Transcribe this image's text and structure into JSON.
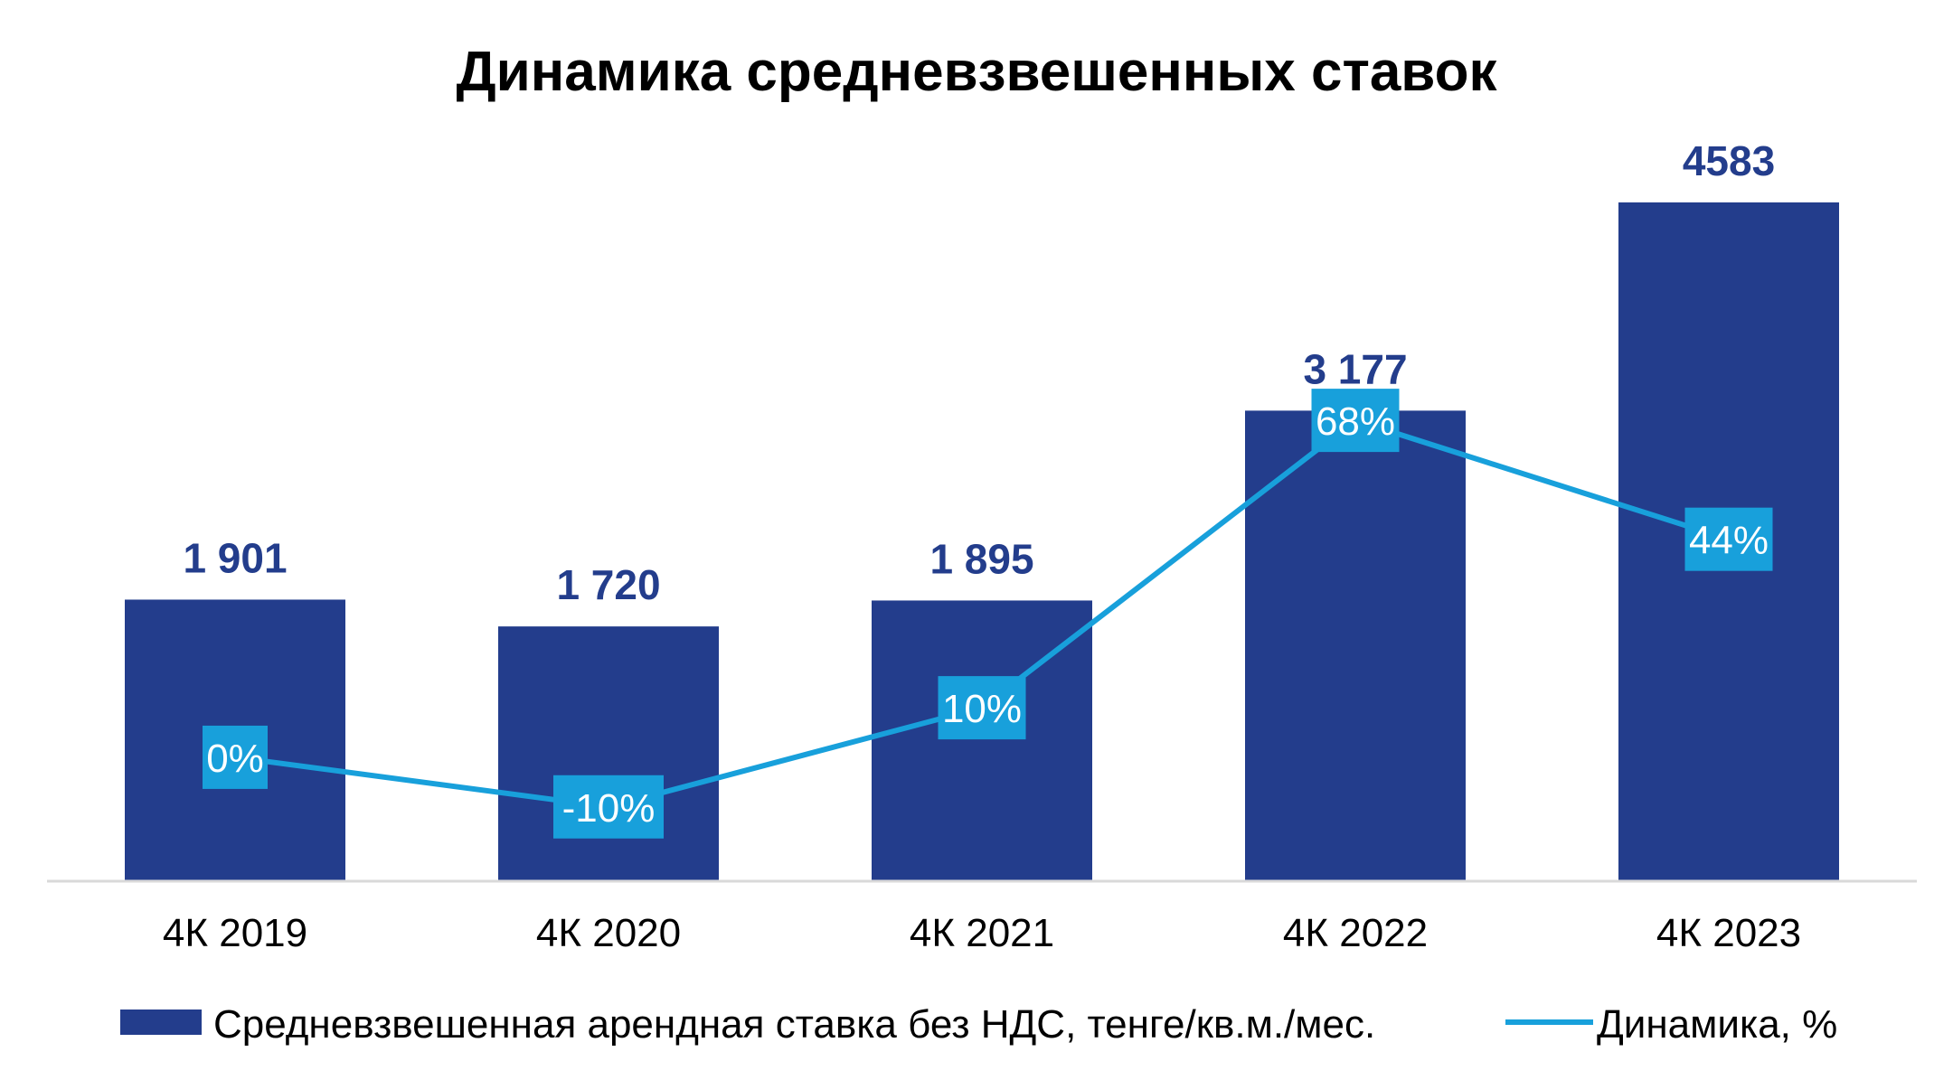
{
  "chart_data": {
    "type": "bar",
    "title": "Динамика средневзвешенных ставок",
    "xlabel": "",
    "ylabel": "",
    "categories": [
      "4К 2019",
      "4К 2020",
      "4К 2021",
      "4К 2022",
      "4К 2023"
    ],
    "ylim": [
      0,
      4900
    ],
    "grid": false,
    "legend_position": "bottom",
    "series": [
      {
        "name": "Средневзвешенная арендная ставка без НДС, тенге/кв.м./мес.",
        "type": "bar",
        "values": [
          1901,
          1720,
          1895,
          3177,
          4583
        ],
        "labels": [
          "1 901",
          "1 720",
          "1 895",
          "3 177",
          "4583"
        ],
        "color": "#233d8c"
      },
      {
        "name": "Динамика, %",
        "type": "line",
        "values": [
          0,
          -10,
          10,
          68,
          44
        ],
        "labels": [
          "0%",
          "-10%",
          "10%",
          "68%",
          "44%"
        ],
        "color": "#18a0db"
      }
    ],
    "secondary_ylim": [
      -25,
      120
    ]
  }
}
